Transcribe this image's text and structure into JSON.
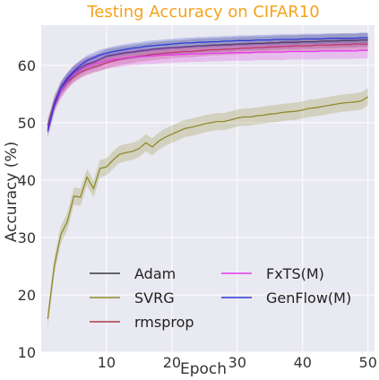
{
  "chart_data": {
    "type": "line",
    "title": "Testing Accuracy on CIFAR10",
    "xlabel": "Epoch",
    "ylabel": "Accuracy (%)",
    "xlim": [
      0,
      51
    ],
    "ylim": [
      10,
      67
    ],
    "xticks": [
      10,
      20,
      30,
      40,
      50
    ],
    "yticks": [
      10,
      20,
      30,
      40,
      50,
      60
    ],
    "grid": true,
    "legend": {
      "placement": "lower-center",
      "columns": 2
    },
    "colors": {
      "background": "#e9e9f1",
      "grid": "#ffffff",
      "title": "#f6a21a"
    },
    "x": [
      1,
      2,
      3,
      4,
      5,
      6,
      7,
      8,
      9,
      10,
      11,
      12,
      13,
      14,
      15,
      16,
      17,
      18,
      19,
      20,
      21,
      22,
      23,
      24,
      25,
      26,
      27,
      28,
      29,
      30,
      31,
      32,
      33,
      34,
      35,
      36,
      37,
      38,
      39,
      40,
      41,
      42,
      43,
      44,
      45,
      46,
      47,
      48,
      49,
      50
    ],
    "series": [
      {
        "name": "Adam",
        "color": "#3b3b3b",
        "band": 1.2,
        "values": [
          49.5,
          53.5,
          56.0,
          57.5,
          58.8,
          59.6,
          60.2,
          60.5,
          61.0,
          61.6,
          61.8,
          62.0,
          62.2,
          62.3,
          62.5,
          62.6,
          62.8,
          62.9,
          63.0,
          63.1,
          63.1,
          63.2,
          63.3,
          63.4,
          63.4,
          63.5,
          63.5,
          63.6,
          63.6,
          63.7,
          63.7,
          63.8,
          63.8,
          63.8,
          63.9,
          63.9,
          64.0,
          64.0,
          64.0,
          64.1,
          64.1,
          64.1,
          64.2,
          64.2,
          64.2,
          64.3,
          64.3,
          64.3,
          64.4,
          64.4
        ]
      },
      {
        "name": "SVRG",
        "color": "#8f8a2c",
        "band": 1.5,
        "values": [
          15.8,
          25.0,
          30.5,
          32.8,
          37.2,
          37.0,
          40.5,
          38.5,
          42.0,
          42.3,
          43.5,
          44.5,
          44.8,
          45.0,
          45.5,
          46.5,
          45.8,
          46.8,
          47.5,
          48.0,
          48.5,
          49.0,
          49.2,
          49.5,
          49.8,
          50.0,
          50.2,
          50.2,
          50.5,
          50.8,
          51.0,
          51.0,
          51.2,
          51.3,
          51.5,
          51.6,
          51.8,
          51.9,
          52.0,
          52.2,
          52.5,
          52.6,
          52.8,
          53.0,
          53.2,
          53.4,
          53.5,
          53.6,
          53.8,
          54.5
        ]
      },
      {
        "name": "rmsprop",
        "color": "#b2374a",
        "band": 1.0,
        "values": [
          49.0,
          53.2,
          55.5,
          57.0,
          58.0,
          58.8,
          59.3,
          59.7,
          60.0,
          60.4,
          60.7,
          61.0,
          61.2,
          61.4,
          61.6,
          61.7,
          61.9,
          62.0,
          62.1,
          62.2,
          62.3,
          62.4,
          62.4,
          62.5,
          62.6,
          62.7,
          62.7,
          62.8,
          62.8,
          62.9,
          63.0,
          63.0,
          63.1,
          63.1,
          63.2,
          63.2,
          63.3,
          63.3,
          63.4,
          63.4,
          63.4,
          63.5,
          63.5,
          63.5,
          63.6,
          63.6,
          63.6,
          63.7,
          63.7,
          63.7
        ]
      },
      {
        "name": "FxTS(M)",
        "color": "#e33ae8",
        "band": 1.4,
        "values": [
          48.8,
          53.0,
          55.5,
          57.2,
          58.5,
          59.2,
          59.8,
          60.2,
          60.5,
          60.8,
          61.0,
          61.1,
          61.3,
          61.4,
          61.5,
          61.6,
          61.6,
          61.7,
          61.8,
          61.8,
          61.9,
          61.9,
          62.0,
          62.0,
          62.0,
          62.1,
          62.1,
          62.1,
          62.2,
          62.2,
          62.2,
          62.2,
          62.3,
          62.3,
          62.3,
          62.3,
          62.3,
          62.4,
          62.4,
          62.4,
          62.4,
          62.4,
          62.5,
          62.5,
          62.5,
          62.5,
          62.5,
          62.5,
          62.6,
          62.6
        ]
      },
      {
        "name": "GenFlow(M)",
        "color": "#2f3ad8",
        "band": 0.9,
        "values": [
          48.5,
          53.0,
          56.2,
          57.8,
          59.0,
          60.0,
          60.8,
          61.3,
          61.8,
          62.1,
          62.4,
          62.6,
          62.8,
          63.0,
          63.1,
          63.3,
          63.4,
          63.5,
          63.6,
          63.7,
          63.8,
          63.9,
          63.9,
          64.0,
          64.0,
          64.1,
          64.1,
          64.2,
          64.2,
          64.3,
          64.3,
          64.3,
          64.4,
          64.4,
          64.4,
          64.5,
          64.5,
          64.5,
          64.5,
          64.6,
          64.6,
          64.6,
          64.6,
          64.7,
          64.7,
          64.7,
          64.7,
          64.7,
          64.8,
          64.8
        ]
      }
    ]
  }
}
